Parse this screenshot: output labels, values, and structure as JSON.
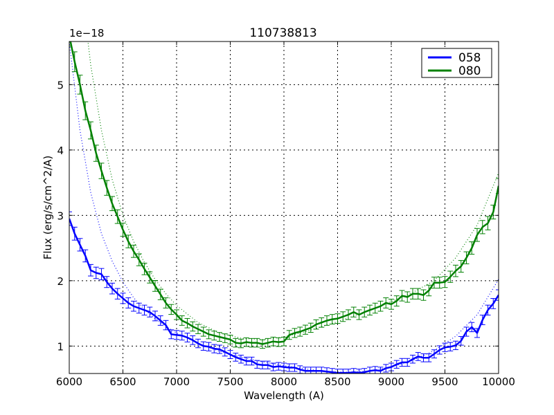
{
  "chart_data": {
    "type": "line",
    "title": "110738813",
    "xlabel": "Wavelength (A)",
    "ylabel": "Flux (erg/s/cm^2/A)",
    "y_offset_label": "1e−18",
    "xlim": [
      6000,
      10000
    ],
    "ylim": [
      0.58,
      5.66
    ],
    "x_ticks": [
      6000,
      6500,
      7000,
      7500,
      8000,
      8500,
      9000,
      9500,
      10000
    ],
    "y_ticks": [
      1,
      2,
      3,
      4,
      5
    ],
    "grid": true,
    "legend_position": "upper right",
    "series": [
      {
        "name": "058",
        "color": "#0000ff",
        "style": "solid-with-errorbars",
        "x": [
          6000,
          6050,
          6100,
          6150,
          6200,
          6250,
          6300,
          6350,
          6400,
          6450,
          6500,
          6550,
          6600,
          6650,
          6700,
          6750,
          6800,
          6850,
          6900,
          6950,
          7000,
          7050,
          7100,
          7150,
          7200,
          7250,
          7300,
          7350,
          7400,
          7450,
          7500,
          7550,
          7600,
          7650,
          7700,
          7750,
          7800,
          7850,
          7900,
          7950,
          8000,
          8050,
          8100,
          8150,
          8200,
          8250,
          8300,
          8350,
          8400,
          8450,
          8500,
          8550,
          8600,
          8650,
          8700,
          8750,
          8800,
          8850,
          8900,
          8950,
          9000,
          9050,
          9100,
          9150,
          9200,
          9250,
          9300,
          9350,
          9400,
          9450,
          9500,
          9550,
          9600,
          9650,
          9700,
          9750,
          9800,
          9850,
          9900,
          9950,
          10000
        ],
        "values": [
          2.95,
          2.72,
          2.55,
          2.38,
          2.16,
          2.12,
          2.1,
          1.98,
          1.88,
          1.8,
          1.73,
          1.66,
          1.61,
          1.58,
          1.55,
          1.52,
          1.46,
          1.39,
          1.32,
          1.18,
          1.17,
          1.16,
          1.13,
          1.09,
          1.04,
          1.0,
          0.99,
          0.96,
          0.95,
          0.91,
          0.87,
          0.83,
          0.8,
          0.77,
          0.77,
          0.72,
          0.71,
          0.71,
          0.68,
          0.69,
          0.68,
          0.67,
          0.67,
          0.64,
          0.62,
          0.62,
          0.62,
          0.62,
          0.61,
          0.6,
          0.59,
          0.59,
          0.59,
          0.6,
          0.59,
          0.6,
          0.62,
          0.63,
          0.62,
          0.66,
          0.68,
          0.72,
          0.75,
          0.75,
          0.8,
          0.84,
          0.82,
          0.82,
          0.88,
          0.94,
          0.98,
          0.99,
          1.01,
          1.08,
          1.22,
          1.29,
          1.2,
          1.4,
          1.55,
          1.65,
          1.78
        ]
      },
      {
        "name": "080",
        "color": "#008000",
        "style": "solid-with-errorbars",
        "x": [
          6000,
          6050,
          6100,
          6150,
          6200,
          6250,
          6300,
          6350,
          6400,
          6450,
          6500,
          6550,
          6600,
          6650,
          6700,
          6750,
          6800,
          6850,
          6900,
          6950,
          7000,
          7050,
          7100,
          7150,
          7200,
          7250,
          7300,
          7350,
          7400,
          7450,
          7500,
          7550,
          7600,
          7650,
          7700,
          7750,
          7800,
          7850,
          7900,
          7950,
          8000,
          8050,
          8100,
          8150,
          8200,
          8250,
          8300,
          8350,
          8400,
          8450,
          8500,
          8550,
          8600,
          8650,
          8700,
          8750,
          8800,
          8850,
          8900,
          8950,
          9000,
          9050,
          9100,
          9150,
          9200,
          9250,
          9300,
          9350,
          9400,
          9450,
          9500,
          9550,
          9600,
          9650,
          9700,
          9750,
          9800,
          9850,
          9900,
          9950,
          10000
        ],
        "values": [
          5.75,
          5.35,
          5.0,
          4.6,
          4.3,
          3.95,
          3.68,
          3.42,
          3.18,
          2.98,
          2.78,
          2.6,
          2.45,
          2.32,
          2.18,
          2.05,
          1.92,
          1.79,
          1.66,
          1.56,
          1.48,
          1.39,
          1.35,
          1.3,
          1.26,
          1.22,
          1.18,
          1.16,
          1.14,
          1.12,
          1.1,
          1.05,
          1.04,
          1.06,
          1.05,
          1.05,
          1.03,
          1.05,
          1.07,
          1.06,
          1.07,
          1.17,
          1.2,
          1.22,
          1.25,
          1.28,
          1.33,
          1.36,
          1.39,
          1.41,
          1.42,
          1.45,
          1.48,
          1.52,
          1.48,
          1.52,
          1.55,
          1.58,
          1.61,
          1.66,
          1.64,
          1.69,
          1.77,
          1.75,
          1.8,
          1.8,
          1.78,
          1.85,
          1.97,
          1.97,
          1.98,
          2.06,
          2.15,
          2.22,
          2.35,
          2.5,
          2.7,
          2.82,
          2.88,
          3.05,
          3.45
        ]
      }
    ],
    "fit_curves": [
      {
        "name": "058 fit",
        "color": "#0000ff",
        "style": "dotted",
        "x": [
          6000,
          6100,
          6200,
          6300,
          6400,
          6500,
          6600,
          6700,
          6800,
          6900,
          7000,
          7200,
          7400,
          7600,
          7800,
          8000,
          8200,
          8400,
          8600,
          8800,
          9000,
          9200,
          9400,
          9600,
          9800,
          10000
        ],
        "values": [
          5.66,
          4.3,
          3.35,
          2.72,
          2.3,
          1.98,
          1.74,
          1.56,
          1.42,
          1.3,
          1.2,
          1.04,
          0.92,
          0.83,
          0.76,
          0.7,
          0.65,
          0.61,
          0.6,
          0.62,
          0.68,
          0.78,
          0.93,
          1.15,
          1.48,
          2.02
        ]
      },
      {
        "name": "080 fit",
        "color": "#008000",
        "style": "dotted",
        "x": [
          6000,
          6100,
          6200,
          6300,
          6400,
          6500,
          6600,
          6700,
          6800,
          6900,
          7000,
          7200,
          7400,
          7600,
          7800,
          8000,
          8200,
          8400,
          8600,
          8800,
          9000,
          9200,
          9400,
          9600,
          9800,
          10000
        ],
        "values": [
          8.5,
          6.7,
          5.3,
          4.3,
          3.55,
          3.0,
          2.6,
          2.28,
          2.02,
          1.8,
          1.62,
          1.36,
          1.2,
          1.12,
          1.1,
          1.14,
          1.22,
          1.32,
          1.43,
          1.55,
          1.68,
          1.82,
          2.0,
          2.35,
          2.85,
          3.65
        ]
      }
    ]
  }
}
